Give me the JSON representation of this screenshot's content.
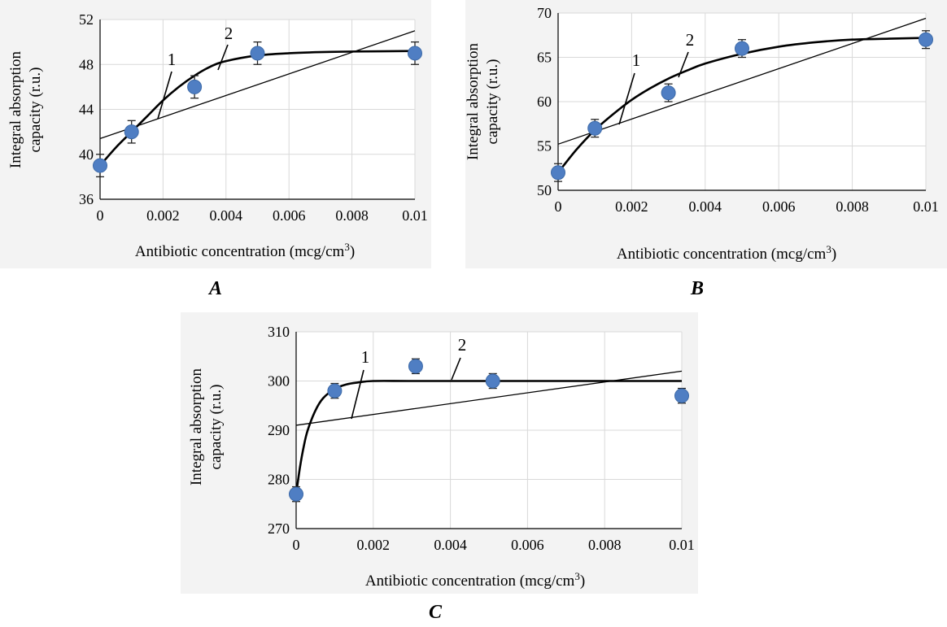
{
  "chart_data": [
    {
      "id": "A",
      "type": "scatter",
      "panel_label": "A",
      "xlabel": "Antibiotic concentration (mcg/cm",
      "xlabel_sup": "3",
      "xlabel_end": ")",
      "ylabel_line1": "Integral absorption",
      "ylabel_line2": "capacity  (r.u.)",
      "xlim": [
        0,
        0.01
      ],
      "ylim": [
        36,
        52
      ],
      "xticks": [
        0,
        0.002,
        0.004,
        0.006,
        0.008,
        0.01
      ],
      "xtick_labels": [
        "0",
        "0.002",
        "0.004",
        "0.006",
        "0.008",
        "0.01"
      ],
      "yticks": [
        36,
        40,
        44,
        48,
        52
      ],
      "ytick_labels": [
        "36",
        "40",
        "44",
        "48",
        "52"
      ],
      "grid": true,
      "x": [
        0,
        0.001,
        0.003,
        0.005,
        0.01
      ],
      "y": [
        39,
        42,
        46,
        49,
        49
      ],
      "error": [
        1,
        1,
        1,
        1,
        1
      ],
      "linear_fit": {
        "label": "1",
        "x": [
          0,
          0.01
        ],
        "y": [
          41.4,
          51.0
        ]
      },
      "curve_fit": {
        "label": "2",
        "x": [
          0,
          0.0005,
          0.001,
          0.0015,
          0.002,
          0.0025,
          0.003,
          0.0035,
          0.004,
          0.005,
          0.006,
          0.007,
          0.008,
          0.01
        ],
        "y": [
          39.0,
          40.6,
          42.0,
          43.4,
          44.8,
          46.0,
          47.0,
          47.8,
          48.3,
          48.8,
          49.0,
          49.1,
          49.15,
          49.2
        ]
      }
    },
    {
      "id": "B",
      "type": "scatter",
      "panel_label": "B",
      "xlabel": "Antibiotic concentration (mcg/cm",
      "xlabel_sup": "3",
      "xlabel_end": ")",
      "ylabel_line1": "Integral absorption",
      "ylabel_line2": "capacity  (r.u.)",
      "xlim": [
        0,
        0.01
      ],
      "ylim": [
        50,
        70
      ],
      "xticks": [
        0,
        0.002,
        0.004,
        0.006,
        0.008,
        0.01
      ],
      "xtick_labels": [
        "0",
        "0.002",
        "0.004",
        "0.006",
        "0.008",
        "0.01"
      ],
      "yticks": [
        50,
        55,
        60,
        65,
        70
      ],
      "ytick_labels": [
        "50",
        "55",
        "60",
        "65",
        "70"
      ],
      "grid": true,
      "x": [
        0,
        0.001,
        0.003,
        0.005,
        0.01
      ],
      "y": [
        52,
        57,
        61,
        66,
        67
      ],
      "error": [
        1,
        1,
        1,
        1,
        1
      ],
      "linear_fit": {
        "label": "1",
        "x": [
          0,
          0.01
        ],
        "y": [
          55.2,
          69.4
        ]
      },
      "curve_fit": {
        "label": "2",
        "x": [
          0,
          0.0005,
          0.001,
          0.0015,
          0.002,
          0.0025,
          0.003,
          0.0035,
          0.004,
          0.005,
          0.006,
          0.007,
          0.008,
          0.009,
          0.01
        ],
        "y": [
          52.0,
          54.6,
          56.8,
          58.6,
          60.2,
          61.5,
          62.6,
          63.5,
          64.3,
          65.4,
          66.2,
          66.7,
          67.0,
          67.1,
          67.2
        ]
      }
    },
    {
      "id": "C",
      "type": "scatter",
      "panel_label": "C",
      "xlabel": "Antibiotic concentration (mcg/cm",
      "xlabel_sup": "3",
      "xlabel_end": ")",
      "ylabel_line1": "Integral absorption",
      "ylabel_line2": "capacity (r.u.)",
      "xlim": [
        0,
        0.01
      ],
      "ylim": [
        270,
        310
      ],
      "xticks": [
        0,
        0.002,
        0.004,
        0.006,
        0.008,
        0.01
      ],
      "xtick_labels": [
        "0",
        "0.002",
        "0.004",
        "0.006",
        "0.008",
        "0.01"
      ],
      "yticks": [
        270,
        280,
        290,
        300,
        310
      ],
      "ytick_labels": [
        "270",
        "280",
        "290",
        "300",
        "310"
      ],
      "grid": true,
      "x": [
        0,
        0.001,
        0.0031,
        0.0051,
        0.01
      ],
      "y": [
        277,
        298,
        303,
        300,
        297
      ],
      "error": [
        1.5,
        1.5,
        1.5,
        1.5,
        1.5
      ],
      "linear_fit": {
        "label": "1",
        "x": [
          0,
          0.01
        ],
        "y": [
          291,
          302
        ]
      },
      "curve_fit": {
        "label": "2",
        "x": [
          0,
          0.0001,
          0.0002,
          0.0003,
          0.0005,
          0.0007,
          0.001,
          0.0013,
          0.0016,
          0.002,
          0.003,
          0.005,
          0.01
        ],
        "y": [
          277.0,
          282.5,
          286.8,
          290.0,
          294.0,
          296.5,
          298.4,
          299.3,
          299.7,
          300.0,
          300.0,
          300.0,
          300.0
        ]
      }
    }
  ]
}
